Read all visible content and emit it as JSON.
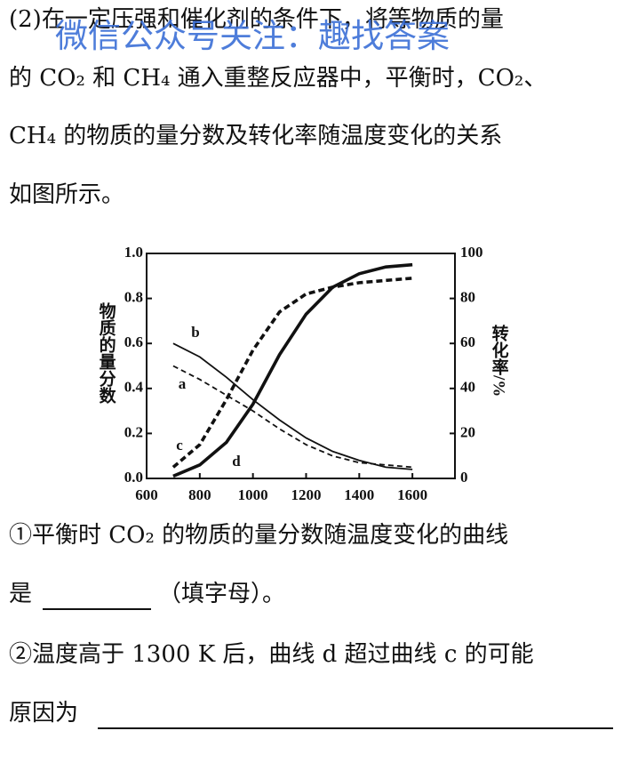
{
  "text": {
    "watermark": "微信公众号关注：趣找答案",
    "lines": [
      "(2)在一定压强和催化剂的条件下，将等物质的量",
      "的 CO₂ 和 CH₄ 通入重整反应器中，平衡时，CO₂、",
      "CH₄ 的物质的量分数及转化率随温度变化的关系",
      "如图所示。"
    ],
    "q1": [
      "①平衡时 CO₂ 的物质的量分数随温度变化的曲线",
      "是",
      "（填字母）。"
    ],
    "q2": [
      "②温度高于 1300 K 后，曲线 d 超过曲线 c 的可能",
      "原因为"
    ]
  },
  "chart_data": {
    "type": "line",
    "y_label": "物质的量分数",
    "y2_label": "转化率/%",
    "x": [
      700,
      800,
      900,
      1000,
      1100,
      1200,
      1300,
      1400,
      1500,
      1600
    ],
    "xlim": [
      600,
      1760
    ],
    "xticks": [
      600,
      800,
      1000,
      1200,
      1400,
      1600
    ],
    "ylim": [
      0,
      1
    ],
    "yticks": [
      {
        "value": 0,
        "label": "0.0"
      },
      0.2,
      0.4,
      0.6,
      0.8,
      {
        "value": 1,
        "label": "1.0"
      }
    ],
    "y2lim": [
      0,
      100
    ],
    "y2ticks": [
      0,
      20,
      40,
      60,
      80,
      100
    ],
    "series": [
      {
        "name": "a",
        "color": "#111111",
        "style": "dashed",
        "weight": "normal",
        "values": [
          0.5,
          0.44,
          0.37,
          0.3,
          0.22,
          0.15,
          0.1,
          0.07,
          0.06,
          0.05
        ]
      },
      {
        "name": "b",
        "color": "#111111",
        "style": "solid",
        "weight": "normal",
        "values": [
          0.6,
          0.54,
          0.45,
          0.35,
          0.26,
          0.18,
          0.12,
          0.08,
          0.05,
          0.04
        ]
      },
      {
        "name": "c",
        "color": "#111111",
        "style": "dashed",
        "weight": "bold",
        "axis": "y2",
        "values": [
          5,
          15,
          35,
          57,
          74,
          82,
          85,
          87,
          88,
          89
        ]
      },
      {
        "name": "d",
        "color": "#111111",
        "style": "solid",
        "weight": "bold",
        "axis": "y2",
        "values": [
          1,
          6,
          16,
          33,
          55,
          73,
          85,
          91,
          94,
          95
        ]
      }
    ]
  }
}
